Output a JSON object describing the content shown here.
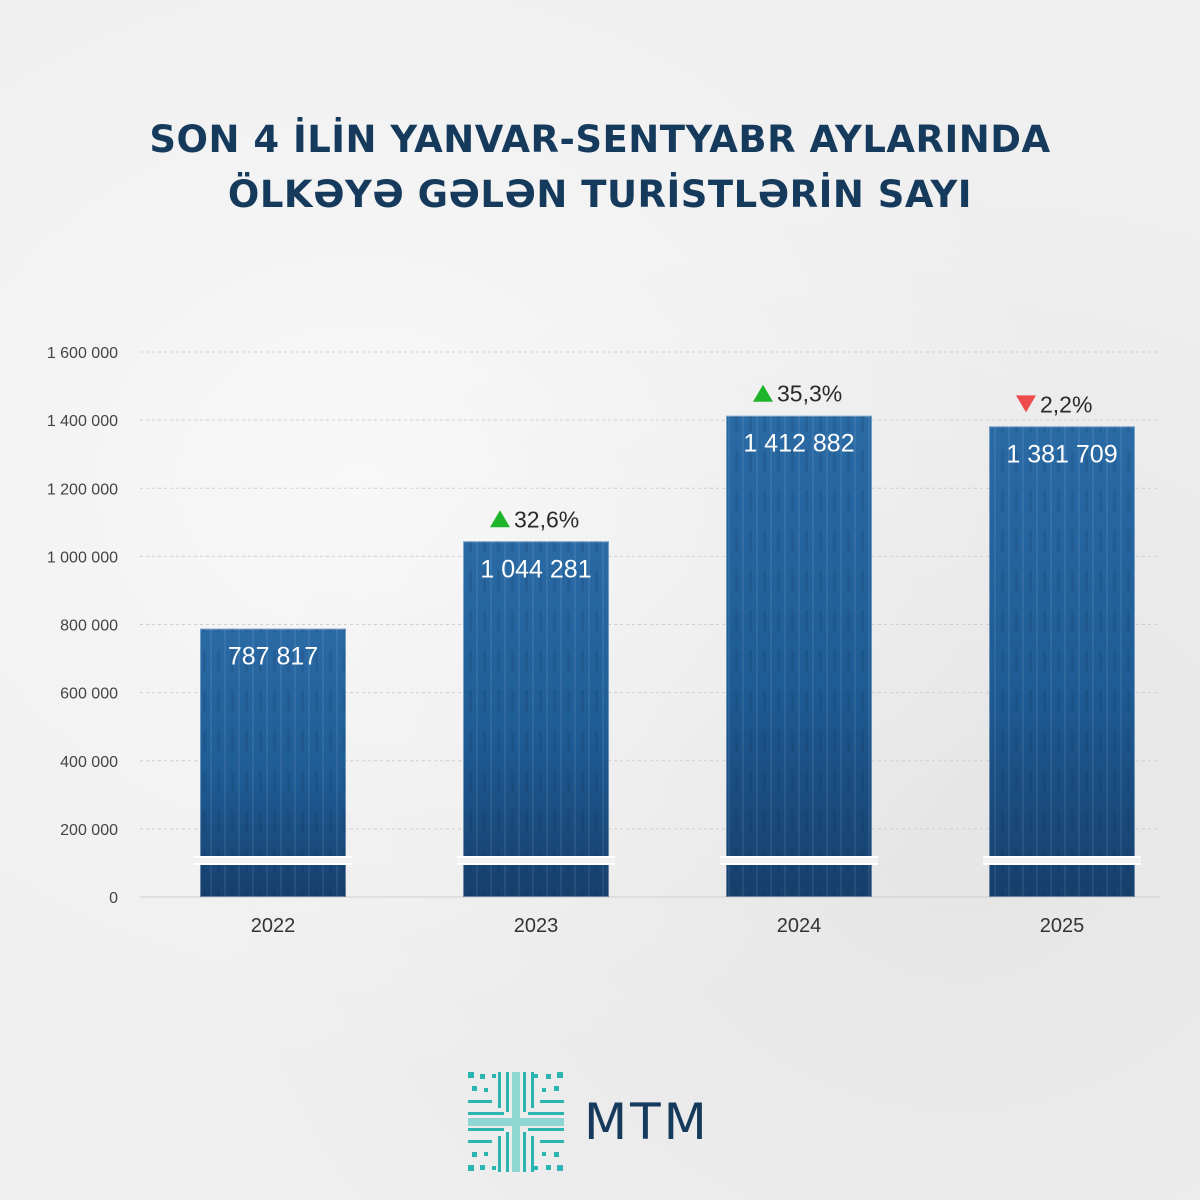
{
  "title_lines": [
    "SON 4 İLİN YANVAR-SENTYABR AYLARINDA",
    "ÖLKƏYƏ GƏLƏN TURİSTLƏRİN SAYI"
  ],
  "logo": {
    "text": "MTM",
    "icon": "starburst-grid-icon"
  },
  "colors": {
    "bar": "#1f5c95",
    "bar_dark": "#123f6d",
    "title": "#153a5c",
    "up": "#1fb52b",
    "down": "#ee4c4c"
  },
  "chart_data": {
    "type": "bar",
    "categories": [
      "2022",
      "2023",
      "2024",
      "2025"
    ],
    "values": [
      787817,
      1044281,
      1412882,
      1381709
    ],
    "value_labels": [
      "787 817",
      "1 044 281",
      "1 412 882",
      "1 381 709"
    ],
    "changes": [
      null,
      {
        "label": "32,6%",
        "direction": "up"
      },
      {
        "label": "35,3%",
        "direction": "up"
      },
      {
        "label": "2,2%",
        "direction": "down"
      }
    ],
    "ylim": [
      0,
      1600000
    ],
    "yticks": [
      0,
      200000,
      400000,
      600000,
      800000,
      1000000,
      1200000,
      1400000,
      1600000
    ],
    "ytick_labels": [
      "0",
      "200 000",
      "400 000",
      "600 000",
      "800 000",
      "1 000 000",
      "1 200 000",
      "1 400 000",
      "1 600 000"
    ],
    "grid": true,
    "axis_break": true
  }
}
